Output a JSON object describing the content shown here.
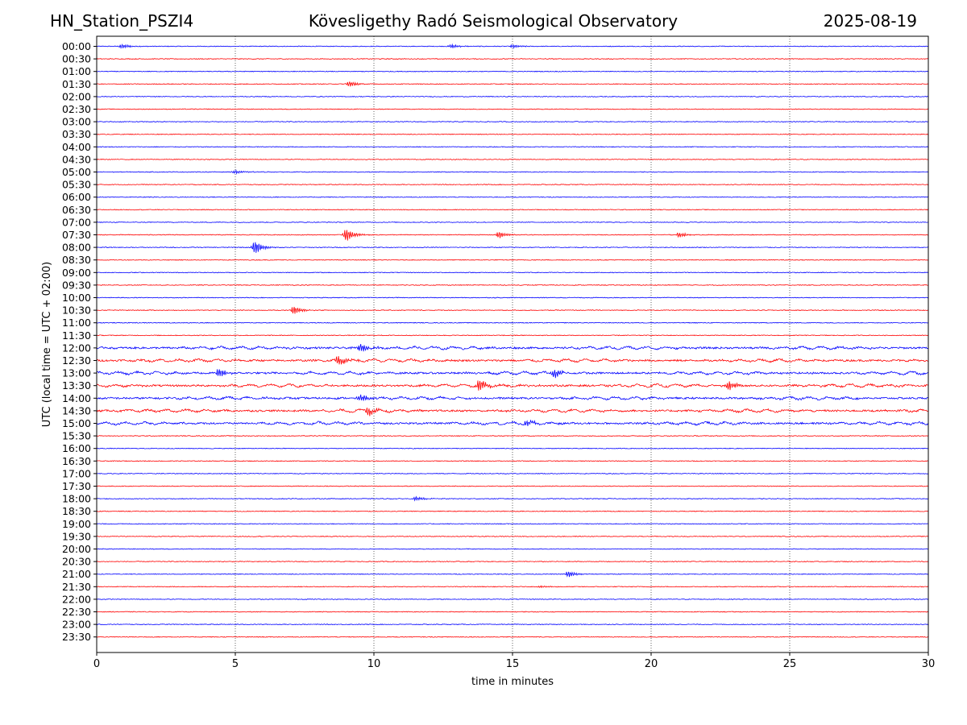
{
  "header": {
    "station": "HN_Station_PSZI4",
    "observatory": "Kövesligethy Radó Seismological Observatory",
    "date": "2025-08-19"
  },
  "chart_data": {
    "type": "line",
    "title": "Kövesligethy Radó Seismological Observatory",
    "xlabel": "time in minutes",
    "ylabel": "UTC (local time = UTC + 02:00)",
    "xlim": [
      0,
      30
    ],
    "x_ticks": [
      0,
      5,
      10,
      15,
      20,
      25,
      30
    ],
    "grid": "vertical dotted at x ticks",
    "row_colors": [
      "#0000ff",
      "#ff0000"
    ],
    "rows": [
      "00:00",
      "00:30",
      "01:00",
      "01:30",
      "02:00",
      "02:30",
      "03:00",
      "03:30",
      "04:00",
      "04:30",
      "05:00",
      "05:30",
      "06:00",
      "06:30",
      "07:00",
      "07:30",
      "08:00",
      "08:30",
      "09:00",
      "09:30",
      "10:00",
      "10:30",
      "11:00",
      "11:30",
      "12:00",
      "12:30",
      "13:00",
      "13:30",
      "14:00",
      "14:30",
      "15:00",
      "15:30",
      "16:00",
      "16:30",
      "17:00",
      "17:30",
      "18:00",
      "18:30",
      "19:00",
      "19:30",
      "20:00",
      "20:30",
      "21:00",
      "21:30",
      "22:00",
      "22:30",
      "23:00",
      "23:30"
    ],
    "events": [
      {
        "row": "00:00",
        "minute": 0.9,
        "amp": 0.35
      },
      {
        "row": "00:00",
        "minute": 12.8,
        "amp": 0.3
      },
      {
        "row": "00:00",
        "minute": 15.0,
        "amp": 0.25
      },
      {
        "row": "01:30",
        "minute": 9.1,
        "amp": 0.45
      },
      {
        "row": "05:00",
        "minute": 5.0,
        "amp": 0.25
      },
      {
        "row": "07:30",
        "minute": 9.0,
        "amp": 1.0
      },
      {
        "row": "07:30",
        "minute": 14.5,
        "amp": 0.5
      },
      {
        "row": "07:30",
        "minute": 21.0,
        "amp": 0.4
      },
      {
        "row": "08:00",
        "minute": 5.7,
        "amp": 1.0
      },
      {
        "row": "10:30",
        "minute": 7.1,
        "amp": 0.6
      },
      {
        "row": "12:00",
        "minute": 9.5,
        "amp": 0.6
      },
      {
        "row": "12:30",
        "minute": 8.7,
        "amp": 0.7
      },
      {
        "row": "13:00",
        "minute": 4.4,
        "amp": 0.6
      },
      {
        "row": "13:00",
        "minute": 16.5,
        "amp": 0.6
      },
      {
        "row": "13:30",
        "minute": 13.8,
        "amp": 0.9
      },
      {
        "row": "13:30",
        "minute": 22.8,
        "amp": 0.7
      },
      {
        "row": "14:00",
        "minute": 9.5,
        "amp": 0.5
      },
      {
        "row": "14:30",
        "minute": 9.8,
        "amp": 0.6
      },
      {
        "row": "15:00",
        "minute": 15.5,
        "amp": 0.4
      },
      {
        "row": "18:00",
        "minute": 11.5,
        "amp": 0.35
      },
      {
        "row": "21:00",
        "minute": 17.0,
        "amp": 0.5
      },
      {
        "row": "21:30",
        "minute": 16.0,
        "amp": 0.2
      }
    ],
    "busy_rows": [
      "12:00",
      "12:30",
      "13:00",
      "13:30",
      "14:00",
      "14:30",
      "15:00"
    ]
  }
}
